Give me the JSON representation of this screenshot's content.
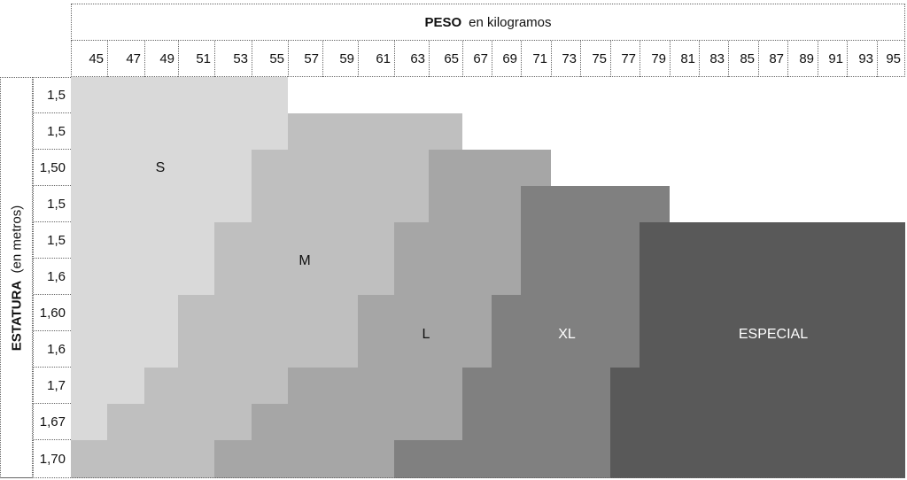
{
  "chart_data": {
    "type": "table",
    "title_bold": "PESO",
    "title_rest": "en kilogramos",
    "ylabel_bold": "ESTATURA",
    "ylabel_rest": "(en metros)",
    "weights": [
      "45",
      "47",
      "49",
      "51",
      "53",
      "55",
      "57",
      "59",
      "61",
      "63",
      "65",
      "67",
      "69",
      "71",
      "73",
      "75",
      "77",
      "79",
      "81",
      "83",
      "85",
      "87",
      "89",
      "91",
      "93",
      "95"
    ],
    "heights": [
      "1,5",
      "1,5",
      "1,50",
      "1,5",
      "1,5",
      "1,6",
      "1,60",
      "1,6",
      "1,7",
      "1,67",
      "1,70"
    ],
    "sizes": {
      "S": {
        "label": "S",
        "color": "#d9d9d9",
        "text_color": "#111111"
      },
      "M": {
        "label": "M",
        "color": "#bfbfbf",
        "text_color": "#111111"
      },
      "L": {
        "label": "L",
        "color": "#a6a6a6",
        "text_color": "#111111"
      },
      "X": {
        "label": "XL",
        "color": "#808080",
        "text_color": "#ffffff"
      },
      "E": {
        "label": "ESPECIAL",
        "color": "#595959",
        "text_color": "#ffffff"
      }
    },
    "grid_rows": [
      [
        [
          "S",
          6
        ],
        [
          null,
          20
        ]
      ],
      [
        [
          "S",
          6
        ],
        [
          "M",
          5
        ],
        [
          null,
          15
        ]
      ],
      [
        [
          "S",
          5
        ],
        [
          "M",
          5
        ],
        [
          "L",
          4
        ],
        [
          null,
          12
        ]
      ],
      [
        [
          "S",
          5
        ],
        [
          "M",
          5
        ],
        [
          "L",
          3
        ],
        [
          "X",
          5
        ],
        [
          null,
          8
        ]
      ],
      [
        [
          "S",
          4
        ],
        [
          "M",
          5
        ],
        [
          "L",
          4
        ],
        [
          "X",
          4
        ],
        [
          "E",
          9
        ]
      ],
      [
        [
          "S",
          4
        ],
        [
          "M",
          5
        ],
        [
          "L",
          4
        ],
        [
          "X",
          4
        ],
        [
          "E",
          9
        ]
      ],
      [
        [
          "S",
          3
        ],
        [
          "M",
          5
        ],
        [
          "L",
          4
        ],
        [
          "X",
          5
        ],
        [
          "E",
          9
        ]
      ],
      [
        [
          "S",
          3
        ],
        [
          "M",
          5
        ],
        [
          "L",
          4
        ],
        [
          "X",
          5
        ],
        [
          "E",
          9
        ]
      ],
      [
        [
          "S",
          2
        ],
        [
          "M",
          4
        ],
        [
          "L",
          5
        ],
        [
          "X",
          5
        ],
        [
          "E",
          10
        ]
      ],
      [
        [
          "S",
          1
        ],
        [
          "M",
          4
        ],
        [
          "L",
          6
        ],
        [
          "X",
          5
        ],
        [
          "E",
          10
        ]
      ],
      [
        [
          "M",
          4
        ],
        [
          "L",
          5
        ],
        [
          "X",
          7
        ],
        [
          "E",
          10
        ]
      ]
    ]
  }
}
